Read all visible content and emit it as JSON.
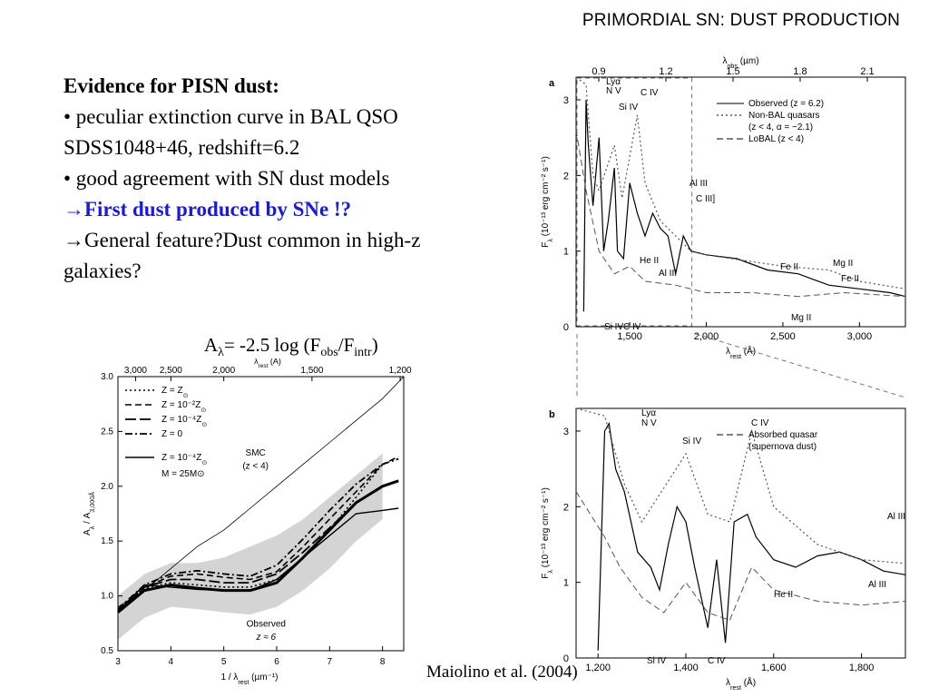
{
  "slide": {
    "title": "PRIMORDIAL SN: DUST PRODUCTION",
    "heading": "Evidence for PISN dust:",
    "bullet1": "• peculiar extinction curve in BAL QSO SDSS1048+46, redshift=6.2",
    "bullet2": "• good agreement with SN dust models",
    "conclusion": "→First dust produced by SNe !?",
    "question": "→General feature?Dust common in high-z galaxies?",
    "formula": {
      "lhs": "A",
      "lhs_sub": "λ",
      "mid": "= -2.5 log (F",
      "obs_sub": "obs",
      "slash": "/F",
      "intr_sub": "intr",
      "end": ")"
    },
    "citation": "Maiolino et al. (2004)",
    "colors": {
      "accent_blue": "#1a1adc"
    }
  },
  "chart_data": [
    {
      "type": "line",
      "panel": "extinction",
      "xlabel": "1 / λ",
      "xlabel_sub": "rest",
      "xlabel_unit": "(µm⁻¹)",
      "ylabel": "A",
      "ylabel_sub": "λ",
      "ylabel_mid": " / A",
      "ylabel_sub2": "3,000Å",
      "top_axis_label": "λ",
      "top_axis_sub": "rest",
      "top_axis_unit": "(Å)",
      "xlim": [
        3,
        8.4
      ],
      "ylim": [
        0.5,
        3.0
      ],
      "xticks": [
        "3",
        "4",
        "5",
        "6",
        "7",
        "8"
      ],
      "yticks": [
        "0.5",
        "1.0",
        "1.5",
        "2.0",
        "2.5",
        "3.0"
      ],
      "top_ticks": [
        "3,000",
        "2,500",
        "2,000",
        "1,500",
        "1,200"
      ],
      "legend": [
        {
          "prefix": "Z = Z",
          "sub": "⊙",
          "style": "dotted"
        },
        {
          "prefix": "Z = 10⁻²Z",
          "sub": "⊙",
          "style": "dashed"
        },
        {
          "prefix": "Z = 10⁻⁴Z",
          "sub": "⊙",
          "style": "longdash"
        },
        {
          "prefix": "Z = 0",
          "sub": "",
          "style": "dashdot"
        },
        {
          "prefix": "Z = 10⁻⁴Z",
          "sub": "⊙",
          "style": "solid"
        }
      ],
      "legend_extra": "M = 25M⊙",
      "annotations": [
        "SMC",
        "(z < 4)",
        "Observed",
        "z ≈ 6"
      ],
      "series": [
        {
          "name": "SMC",
          "style": "thin",
          "x": [
            3,
            3.5,
            4,
            4.5,
            5,
            5.5,
            6,
            6.5,
            7,
            7.5,
            8,
            8.4
          ],
          "y": [
            0.9,
            1.05,
            1.25,
            1.45,
            1.6,
            1.8,
            2.0,
            2.2,
            2.4,
            2.6,
            2.8,
            3.0
          ]
        },
        {
          "name": "Z = Z⊙",
          "style": "dotted",
          "x": [
            3,
            3.5,
            4,
            4.5,
            5,
            5.5,
            6,
            6.5,
            7,
            7.5,
            8
          ],
          "y": [
            0.88,
            1.07,
            1.12,
            1.1,
            1.08,
            1.08,
            1.15,
            1.35,
            1.6,
            1.9,
            2.2
          ]
        },
        {
          "name": "Z = 10⁻²Z⊙",
          "style": "dashed",
          "x": [
            3,
            3.5,
            4,
            4.5,
            5,
            5.5,
            6,
            6.5,
            7,
            7.5,
            8,
            8.3
          ],
          "y": [
            0.87,
            1.08,
            1.18,
            1.2,
            1.17,
            1.15,
            1.22,
            1.45,
            1.7,
            1.95,
            2.2,
            2.27
          ]
        },
        {
          "name": "Z = 10⁻⁴Z⊙",
          "style": "longdash",
          "x": [
            3,
            3.5,
            4,
            4.5,
            5,
            5.5,
            6,
            6.5,
            7,
            7.5,
            8,
            8.3
          ],
          "y": [
            0.86,
            1.08,
            1.15,
            1.15,
            1.12,
            1.12,
            1.2,
            1.4,
            1.62,
            1.85,
            2.0,
            2.05
          ]
        },
        {
          "name": "Z = 0",
          "style": "dashdot",
          "x": [
            3,
            3.5,
            4,
            4.5,
            5,
            5.5,
            6,
            6.5,
            7,
            7.5,
            8,
            8.3
          ],
          "y": [
            0.88,
            1.1,
            1.2,
            1.23,
            1.2,
            1.18,
            1.28,
            1.52,
            1.78,
            2.02,
            2.2,
            2.25
          ]
        },
        {
          "name": "Z = 10⁻⁴Z⊙ M = 25M⊙",
          "style": "solid",
          "x": [
            3,
            3.5,
            4,
            4.5,
            5,
            5.5,
            6,
            6.5,
            7,
            7.5,
            8,
            8.3
          ],
          "y": [
            0.86,
            1.1,
            1.08,
            1.06,
            1.05,
            1.05,
            1.15,
            1.35,
            1.55,
            1.75,
            1.78,
            1.8
          ]
        },
        {
          "name": "Observed",
          "style": "thick",
          "x": [
            3,
            3.5,
            4,
            4.5,
            5,
            5.5,
            6,
            6.5,
            7,
            7.5,
            8,
            8.3
          ],
          "y": [
            0.85,
            1.05,
            1.1,
            1.07,
            1.05,
            1.05,
            1.12,
            1.35,
            1.6,
            1.85,
            2.0,
            2.05
          ]
        }
      ],
      "band": {
        "x": [
          3,
          3.5,
          4,
          4.5,
          5,
          5.5,
          6,
          6.5,
          7,
          7.5,
          8
        ],
        "lo": [
          0.6,
          0.8,
          0.9,
          0.88,
          0.85,
          0.83,
          0.9,
          1.05,
          1.25,
          1.5,
          1.7
        ],
        "hi": [
          1.0,
          1.2,
          1.3,
          1.3,
          1.35,
          1.45,
          1.55,
          1.7,
          1.9,
          2.1,
          2.3
        ]
      }
    },
    {
      "type": "line",
      "panel": "a",
      "panel_label": "a",
      "xlabel": "λ",
      "xlabel_sub": "rest",
      "xlabel_unit": "(Å)",
      "ylabel": "F",
      "ylabel_sub": "λ",
      "ylabel_unit": " (10⁻¹³ erg cm⁻² s⁻¹)",
      "top_axis_label": "λ",
      "top_axis_sub": "obs",
      "top_axis_unit": "(µm)",
      "xlim": [
        1150,
        3300
      ],
      "ylim": [
        0,
        3.3
      ],
      "xticks": [
        "1,500",
        "2,000",
        "2,500",
        "3,000"
      ],
      "yticks": [
        "0",
        "1",
        "2",
        "3"
      ],
      "top_ticks": [
        "0.9",
        "1.2",
        "1.5",
        "1.8",
        "2.1"
      ],
      "legend": [
        "Observed (z = 6.2)",
        "Non-BAL quasars",
        "(z < 4, α = −2.1)",
        "LoBAL (z < 4)"
      ],
      "labels": [
        "Lyα",
        "N V",
        "Si IV",
        "C IV",
        "Al III",
        "C III]",
        "He II",
        "Al III",
        "Fe II",
        "Mg II",
        "Fe II",
        "Si IV",
        "C IV",
        "Mg II"
      ],
      "series": [
        {
          "name": "Observed",
          "x": [
            1200,
            1215,
            1230,
            1260,
            1300,
            1330,
            1360,
            1400,
            1420,
            1460,
            1500,
            1550,
            1600,
            1650,
            1700,
            1750,
            1800,
            1850,
            1900,
            2000,
            2200,
            2400,
            2600,
            2800,
            3000,
            3200,
            3300
          ],
          "y": [
            0.2,
            3.0,
            2.4,
            1.6,
            2.5,
            1.0,
            1.4,
            2.1,
            1.0,
            0.9,
            1.9,
            1.5,
            1.2,
            1.5,
            1.3,
            1.2,
            0.7,
            1.2,
            1.0,
            0.95,
            0.9,
            0.75,
            0.7,
            0.55,
            0.5,
            0.45,
            0.4
          ]
        },
        {
          "name": "Non-BAL",
          "x": [
            1150,
            1215,
            1260,
            1300,
            1400,
            1450,
            1550,
            1600,
            1700,
            1800,
            1900,
            2000,
            2500,
            2800,
            3000,
            3300
          ],
          "y": [
            3.3,
            3.2,
            2.0,
            1.8,
            2.4,
            1.7,
            2.8,
            1.9,
            1.4,
            1.2,
            1.0,
            0.95,
            0.8,
            0.75,
            0.6,
            0.5
          ]
        },
        {
          "name": "LoBAL",
          "x": [
            1150,
            1215,
            1300,
            1400,
            1500,
            1600,
            1800,
            2000,
            2300,
            2600,
            2900,
            3300
          ],
          "y": [
            2.6,
            1.8,
            1.0,
            0.7,
            0.8,
            0.6,
            0.55,
            0.45,
            0.45,
            0.4,
            0.45,
            0.4
          ]
        }
      ]
    },
    {
      "type": "line",
      "panel": "b",
      "panel_label": "b",
      "xlabel": "λ",
      "xlabel_sub": "rest",
      "xlabel_unit": "(Å)",
      "ylabel": "F",
      "ylabel_sub": "λ",
      "ylabel_unit": " (10⁻¹³ erg cm⁻² s⁻¹)",
      "xlim": [
        1150,
        1900
      ],
      "ylim": [
        0,
        3.3
      ],
      "xticks": [
        "1,200",
        "1,400",
        "1,600",
        "1,800"
      ],
      "yticks": [
        "0",
        "1",
        "2",
        "3"
      ],
      "legend": [
        "Absorbed quasar",
        "(supernova dust)"
      ],
      "labels": [
        "Lyα",
        "N V",
        "Si IV",
        "C IV",
        "Al III",
        "He II",
        "Al III",
        "Si IV",
        "C IV"
      ],
      "series": [
        {
          "name": "Observed",
          "x": [
            1200,
            1215,
            1225,
            1240,
            1260,
            1290,
            1320,
            1340,
            1360,
            1380,
            1400,
            1420,
            1450,
            1470,
            1490,
            1510,
            1540,
            1560,
            1600,
            1650,
            1700,
            1750,
            1800,
            1850,
            1900
          ],
          "y": [
            0.1,
            3.0,
            3.1,
            2.5,
            2.2,
            1.4,
            1.2,
            0.9,
            1.5,
            2.0,
            1.8,
            1.2,
            0.4,
            1.3,
            0.2,
            1.8,
            1.9,
            1.6,
            1.3,
            1.2,
            1.35,
            1.4,
            1.3,
            1.15,
            1.1
          ]
        },
        {
          "name": "Non-BAL",
          "x": [
            1150,
            1215,
            1260,
            1300,
            1400,
            1450,
            1500,
            1550,
            1600,
            1700,
            1800,
            1900
          ],
          "y": [
            3.3,
            3.2,
            2.3,
            1.8,
            2.7,
            1.9,
            1.8,
            3.0,
            2.0,
            1.5,
            1.3,
            1.25
          ]
        },
        {
          "name": "Absorbed",
          "x": [
            1150,
            1215,
            1250,
            1300,
            1350,
            1400,
            1450,
            1500,
            1550,
            1600,
            1700,
            1800,
            1900
          ],
          "y": [
            2.2,
            1.6,
            1.2,
            0.8,
            0.6,
            1.0,
            0.6,
            0.5,
            1.2,
            0.9,
            0.75,
            0.7,
            0.75
          ]
        }
      ]
    }
  ]
}
